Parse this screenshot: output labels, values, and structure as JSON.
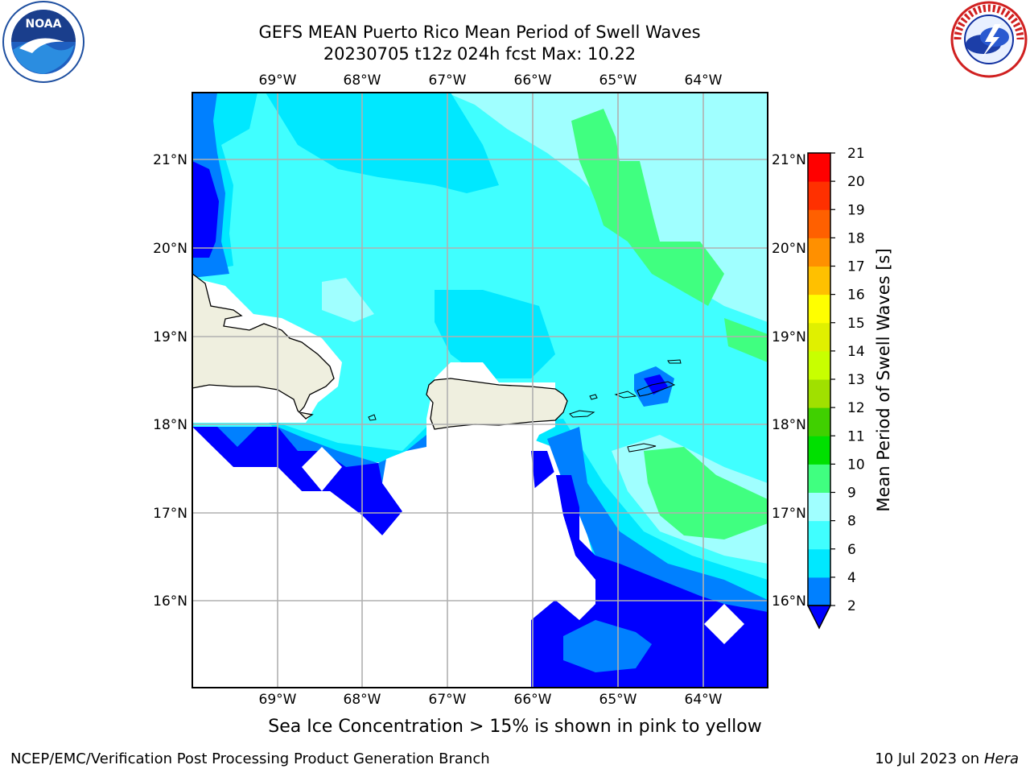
{
  "title": {
    "line1": "GEFS MEAN Puerto Rico Mean Period of Swell Waves",
    "line2": "20230705 t12z 024h fcst   Max: 10.22"
  },
  "map": {
    "lon_labels": [
      "69°W",
      "68°W",
      "67°W",
      "66°W",
      "65°W",
      "64°W"
    ],
    "lat_labels": [
      "21°N",
      "20°N",
      "19°N",
      "18°N",
      "17°N",
      "16°N"
    ]
  },
  "colorbar": {
    "label": "Mean Period of Swell Waves [s]",
    "ticks": [
      "2",
      "4",
      "6",
      "8",
      "9",
      "10",
      "11",
      "12",
      "13",
      "14",
      "15",
      "16",
      "17",
      "18",
      "19",
      "20",
      "21"
    ],
    "colors": [
      "#0000ff",
      "#0080ff",
      "#00e8ff",
      "#40ffff",
      "#a0ffff",
      "#40ff80",
      "#00e000",
      "#40d000",
      "#a0e000",
      "#c8ff00",
      "#e0f000",
      "#ffff00",
      "#ffc000",
      "#ff9000",
      "#ff6000",
      "#ff3000",
      "#ff0000"
    ]
  },
  "caption": "Sea Ice Concentration > 15% is shown in pink to yellow",
  "footer": {
    "left": "NCEP/EMC/Verification Post Processing Product Generation Branch",
    "right_prefix": "10 Jul 2023 on ",
    "right_host": "Hera"
  },
  "logos": {
    "noaa_text": "NOAA",
    "nws_text": "NATIONAL WEATHER SERVICE"
  }
}
